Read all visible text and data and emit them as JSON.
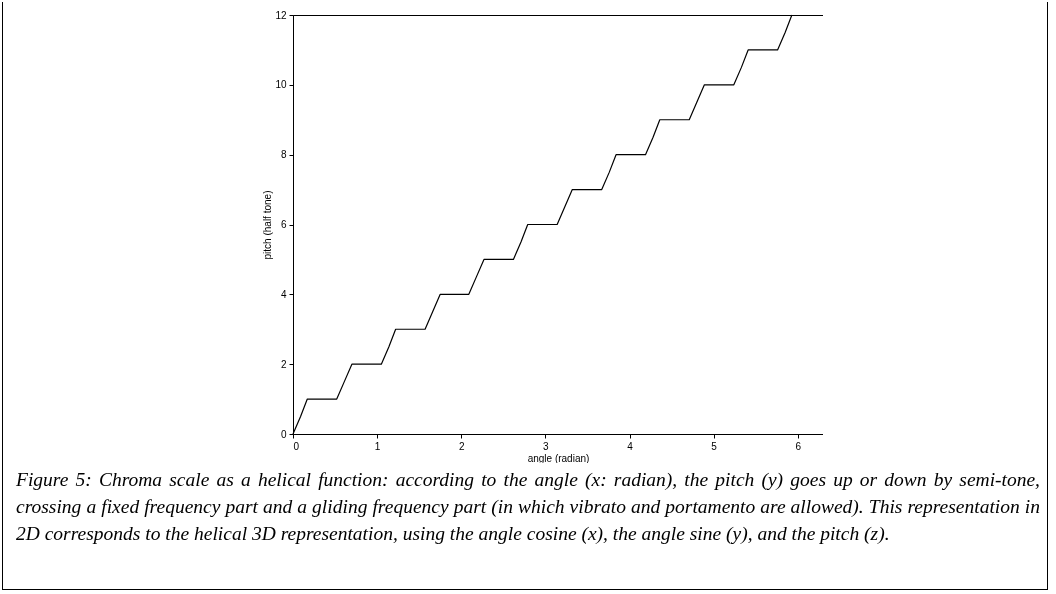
{
  "chart_data": {
    "type": "line",
    "xlabel": "angle (radian)",
    "ylabel": "pitch (half tone)",
    "x": [
      0,
      0.09,
      0.17,
      0.52,
      0.61,
      0.7,
      1.05,
      1.14,
      1.22,
      1.57,
      1.66,
      1.75,
      2.09,
      2.18,
      2.27,
      2.62,
      2.71,
      2.79,
      3.14,
      3.23,
      3.32,
      3.67,
      3.76,
      3.84,
      4.19,
      4.28,
      4.36,
      4.71,
      4.8,
      4.89,
      5.24,
      5.33,
      5.41,
      5.76,
      5.85,
      5.93
    ],
    "series": [
      {
        "color": "#000000",
        "values": [
          0,
          0.5,
          1,
          1,
          1.5,
          2,
          2,
          2.5,
          3,
          3,
          3.5,
          4,
          4,
          4.5,
          5,
          5,
          5.5,
          6,
          6,
          6.5,
          7,
          7,
          7.5,
          8,
          8,
          8.5,
          9,
          9,
          9.5,
          10,
          10,
          10.5,
          11,
          11,
          11.5,
          12
        ]
      }
    ],
    "xlim": [
      0,
      6.3
    ],
    "xticks": [
      0,
      1,
      2,
      3,
      4,
      5,
      6
    ],
    "ylim": [
      0,
      12
    ],
    "yticks": [
      0,
      2,
      4,
      6,
      8,
      10,
      12
    ],
    "grid": false,
    "legend": false,
    "marker": "none",
    "line_style": "solid",
    "annotations": [
      "Figure 5: Chroma scale as a helical function: according to the angle (x: radian), the pitch (y) goes up or down by semi-tone, crossing a fixed frequency part and a gliding frequency part (in which vibrato and portamento are allowed). This representation in 2D corresponds to the helical 3D representation, using the angle cosine (x), the angle sine (y), and the pitch (z)."
    ]
  }
}
